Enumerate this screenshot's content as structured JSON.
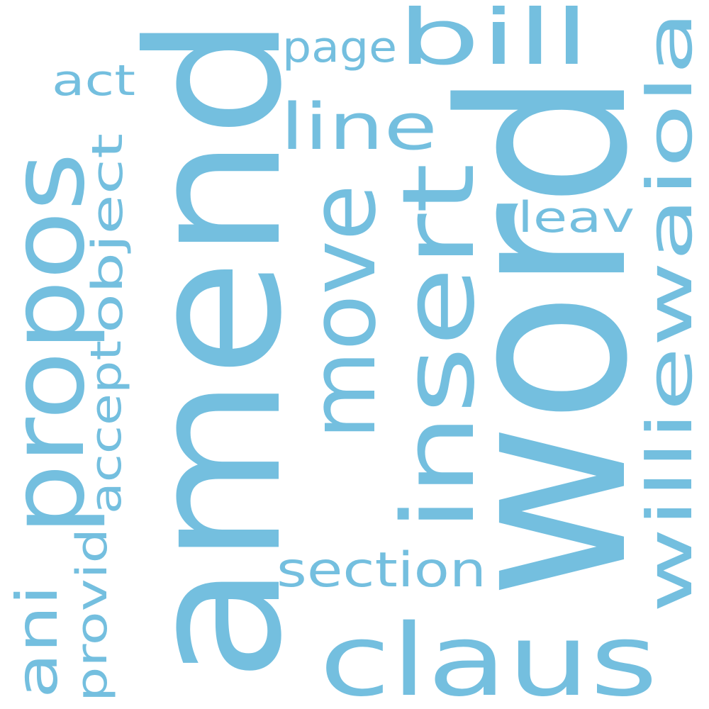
{
  "cloud": {
    "color": "#74bfdf",
    "background": "#ffffff",
    "words": [
      {
        "text": "amend",
        "orientation": "vertical"
      },
      {
        "text": "word",
        "orientation": "vertical"
      },
      {
        "text": "propos",
        "orientation": "vertical"
      },
      {
        "text": "insert",
        "orientation": "vertical"
      },
      {
        "text": "move",
        "orientation": "vertical"
      },
      {
        "text": "claus",
        "orientation": "horizontal"
      },
      {
        "text": "williewaiola",
        "orientation": "vertical"
      },
      {
        "text": "bill",
        "orientation": "horizontal"
      },
      {
        "text": "line",
        "orientation": "horizontal"
      },
      {
        "text": "section",
        "orientation": "horizontal"
      },
      {
        "text": "page",
        "orientation": "horizontal"
      },
      {
        "text": "act",
        "orientation": "horizontal"
      },
      {
        "text": "leav",
        "orientation": "horizontal"
      },
      {
        "text": "object",
        "orientation": "vertical"
      },
      {
        "text": "accept",
        "orientation": "vertical"
      },
      {
        "text": "ani",
        "orientation": "vertical"
      },
      {
        "text": "provid",
        "orientation": "vertical"
      }
    ]
  }
}
